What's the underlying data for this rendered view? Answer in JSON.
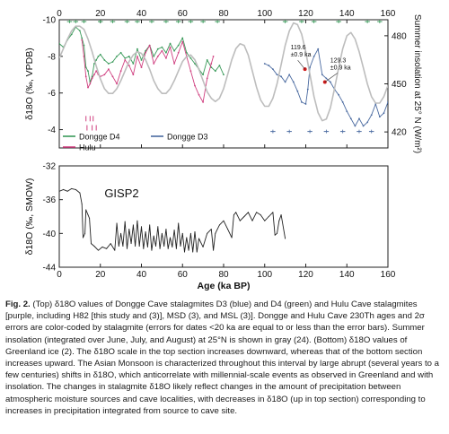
{
  "chart_data": [
    {
      "type": "line",
      "panel": "top",
      "xlabel": "",
      "ylabel": "δ18O (‰, VPDB)",
      "ylabel_right": "Summer insolation at 25° N (W/m²)",
      "xlim": [
        0,
        160
      ],
      "ylim": [
        -10,
        -3
      ],
      "ylim_right": [
        410,
        490
      ],
      "y_inverted": true,
      "x_ticks": [
        "0",
        "20",
        "40",
        "60",
        "80",
        "100",
        "120",
        "140",
        "160"
      ],
      "y_ticks": [
        "-10",
        "-8",
        "-6",
        "-4"
      ],
      "y_ticks_right": [
        "420",
        "450",
        "480"
      ],
      "legend": [
        {
          "name": "Dongge D4",
          "color": "#3a9a5a"
        },
        {
          "name": "Dongge D3",
          "color": "#4a6aa0"
        },
        {
          "name": "Hulu",
          "color": "#d04080"
        }
      ],
      "annotations": [
        {
          "text_line1": "119.6",
          "text_line2": "±0.9 ka",
          "x": 119.6,
          "y": -7.3
        },
        {
          "text_line1": "129.3",
          "text_line2": "±0.9 ka",
          "x": 129.3,
          "y": -6.6
        }
      ],
      "series": [
        {
          "name": "Dongge D4",
          "color": "#3a9a5a",
          "x": [
            0,
            2,
            4,
            6,
            8,
            10,
            11,
            12,
            13,
            14,
            15,
            16,
            17,
            18,
            19,
            20,
            22,
            24,
            26,
            28,
            30,
            32,
            34,
            36,
            38,
            40,
            42,
            44,
            46,
            48,
            50,
            52,
            54,
            56,
            58,
            60,
            62,
            64,
            66,
            68,
            70,
            72,
            74,
            76,
            78,
            80
          ],
          "y": [
            -8.7,
            -8.5,
            -8.9,
            -9.2,
            -9.6,
            -9.4,
            -9.0,
            -8.6,
            -7.4,
            -7.2,
            -6.6,
            -6.9,
            -7.6,
            -7.8,
            -8.0,
            -8.1,
            -7.8,
            -7.6,
            -7.7,
            -8.0,
            -8.2,
            -7.9,
            -8.0,
            -7.6,
            -8.4,
            -7.8,
            -8.3,
            -8.6,
            -8.0,
            -8.4,
            -8.5,
            -8.2,
            -8.7,
            -8.3,
            -8.6,
            -9.0,
            -8.2,
            -7.9,
            -7.6,
            -7.3,
            -7.0,
            -7.8,
            -7.4,
            -7.2,
            -7.5,
            -7.0
          ]
        },
        {
          "name": "Hulu",
          "color": "#d04080",
          "x": [
            11,
            12,
            13,
            14,
            15,
            16,
            17,
            18,
            19,
            20,
            22,
            24,
            26,
            28,
            30,
            32,
            34,
            36,
            38,
            40,
            42,
            44,
            46,
            48,
            50,
            52,
            54,
            56,
            58,
            60,
            62,
            64,
            66,
            68,
            70,
            72,
            74,
            75
          ],
          "y": [
            -8.9,
            -8.0,
            -6.9,
            -6.3,
            -6.5,
            -6.8,
            -7.0,
            -7.2,
            -7.0,
            -6.9,
            -7.0,
            -7.3,
            -6.9,
            -6.5,
            -7.2,
            -7.8,
            -7.5,
            -7.0,
            -8.0,
            -7.4,
            -8.2,
            -8.6,
            -7.6,
            -8.0,
            -8.3,
            -7.9,
            -8.5,
            -7.6,
            -8.2,
            -8.8,
            -8.0,
            -7.2,
            -6.4,
            -5.9,
            -5.5,
            -6.8,
            -7.6,
            -8.0
          ]
        },
        {
          "name": "Dongge D3",
          "color": "#4a6aa0",
          "x": [
            100,
            102,
            104,
            106,
            108,
            110,
            112,
            114,
            116,
            118,
            120,
            121,
            122,
            124,
            126,
            128,
            130,
            132,
            134,
            136,
            138,
            140,
            142,
            144,
            146,
            148,
            150,
            152,
            154,
            156,
            158,
            160
          ],
          "y": [
            -7.6,
            -7.5,
            -7.3,
            -7.0,
            -6.9,
            -6.6,
            -7.0,
            -6.6,
            -6.1,
            -5.5,
            -5.4,
            -6.2,
            -7.4,
            -8.0,
            -8.4,
            -7.0,
            -6.8,
            -6.6,
            -6.2,
            -5.9,
            -5.5,
            -5.0,
            -4.6,
            -4.2,
            -4.6,
            -4.2,
            -4.4,
            -4.8,
            -5.4,
            -4.7,
            -4.9,
            -5.5
          ]
        },
        {
          "name": "Summer insolation",
          "color": "#bdbdbd",
          "axis": "right",
          "x": [
            0,
            2,
            4,
            6,
            8,
            10,
            12,
            14,
            16,
            18,
            20,
            22,
            24,
            26,
            28,
            30,
            32,
            34,
            36,
            38,
            40,
            42,
            44,
            46,
            48,
            50,
            52,
            54,
            56,
            58,
            60,
            62,
            64,
            66,
            68,
            70,
            72,
            74,
            76,
            78,
            80,
            82,
            84,
            86,
            88,
            90,
            92,
            94,
            96,
            98,
            100,
            102,
            104,
            106,
            108,
            110,
            112,
            114,
            116,
            118,
            120,
            122,
            124,
            126,
            128,
            130,
            132,
            134,
            136,
            138,
            140,
            142,
            144,
            146,
            148,
            150,
            152,
            154,
            156,
            158,
            160
          ],
          "y": [
            466,
            472,
            478,
            483,
            486,
            486,
            484,
            478,
            470,
            461,
            453,
            447,
            444,
            444,
            447,
            452,
            458,
            464,
            468,
            470,
            469,
            465,
            459,
            452,
            447,
            444,
            444,
            447,
            452,
            458,
            464,
            467,
            468,
            465,
            459,
            452,
            445,
            441,
            439,
            441,
            447,
            456,
            465,
            472,
            475,
            474,
            468,
            458,
            448,
            440,
            436,
            436,
            441,
            450,
            462,
            474,
            483,
            488,
            487,
            481,
            470,
            456,
            442,
            432,
            427,
            428,
            435,
            447,
            460,
            472,
            480,
            482,
            478,
            470,
            460,
            450,
            442,
            438,
            438,
            442,
            449
          ]
        }
      ]
    },
    {
      "type": "line",
      "panel": "bottom",
      "xlabel": "Age (ka BP)",
      "ylabel": "δ18O (‰, SMOW)",
      "xlim": [
        0,
        160
      ],
      "ylim": [
        -44,
        -32
      ],
      "x_ticks": [
        "0",
        "20",
        "40",
        "60",
        "80",
        "100",
        "120",
        "140",
        "160"
      ],
      "y_ticks": [
        "-44",
        "-40",
        "-36",
        "-32"
      ],
      "label": "GISP2",
      "series": [
        {
          "name": "GISP2",
          "color": "#222222",
          "x": [
            0,
            2,
            4,
            6,
            8,
            10,
            11,
            11.6,
            12.5,
            13,
            14,
            14.7,
            15.5,
            17,
            19,
            21,
            23,
            25,
            27,
            28,
            29,
            30,
            31,
            32,
            33,
            34,
            35,
            36,
            37,
            38,
            39,
            40,
            41,
            42,
            43,
            44,
            45,
            46,
            47,
            48,
            49,
            50,
            51,
            52,
            53,
            54,
            55,
            56,
            57,
            58,
            59,
            60,
            61,
            62,
            63,
            64,
            65,
            66,
            67,
            68,
            70,
            72,
            74,
            75,
            76,
            78,
            80,
            82,
            84,
            85,
            86,
            88,
            90,
            92,
            94,
            96,
            98,
            100,
            102,
            104,
            105,
            106,
            107,
            108,
            110
          ],
          "y": [
            -35.0,
            -34.8,
            -35.0,
            -34.7,
            -34.8,
            -35.2,
            -36.5,
            -40.5,
            -40.0,
            -37.2,
            -37.8,
            -38.2,
            -41.2,
            -41.5,
            -42.0,
            -41.6,
            -41.8,
            -41.2,
            -42.0,
            -38.8,
            -41.5,
            -40.0,
            -41.5,
            -38.6,
            -41.8,
            -39.5,
            -41.2,
            -39.0,
            -41.5,
            -38.5,
            -41.5,
            -39.2,
            -41.8,
            -39.8,
            -41.6,
            -39.0,
            -42.0,
            -40.3,
            -41.5,
            -39.2,
            -41.8,
            -40.0,
            -41.5,
            -39.5,
            -41.8,
            -40.5,
            -41.6,
            -39.6,
            -41.8,
            -38.8,
            -41.5,
            -40.0,
            -42.2,
            -40.5,
            -42.0,
            -40.0,
            -42.2,
            -39.8,
            -42.2,
            -40.6,
            -41.6,
            -40.0,
            -39.5,
            -42.0,
            -40.0,
            -39.0,
            -38.5,
            -39.5,
            -40.5,
            -37.8,
            -37.5,
            -38.5,
            -38.0,
            -37.5,
            -38.5,
            -37.5,
            -37.8,
            -38.5,
            -38.0,
            -37.5,
            -40.2,
            -40.0,
            -38.5,
            -37.8,
            -40.6
          ]
        }
      ]
    }
  ],
  "caption": {
    "fig_label": "Fig. 2.",
    "body": "(Top) δ18O values of Dongge Cave stalagmites D3 (blue) and D4 (green) and Hulu Cave stalagmites [purple, including H82 [this study and (3)], MSD (3), and MSL (3)]. Dongge and Hulu Cave 230Th ages and 2σ errors are color-coded by stalagmite (errors for dates <20 ka are equal to or less than the error bars). Summer insolation (integrated over June, July, and August) at 25°N is shown in gray (24). (Bottom) δ18O values of Greenland ice (2). The δ18O scale in the top section increases downward, whereas that of the bottom section increases upward. The Asian Monsoon is characterized throughout this interval by large abrupt (several years to a few centuries) shifts in δ18O, which anticorrelate with millennial-scale events as observed in Greenland and with insolation. The changes in stalagmite δ18O likely reflect changes in the amount of precipitation between atmospheric moisture sources and cave localities, with decreases in δ18O (up in top section) corresponding to increases in precipitation integrated from source to cave site."
  }
}
